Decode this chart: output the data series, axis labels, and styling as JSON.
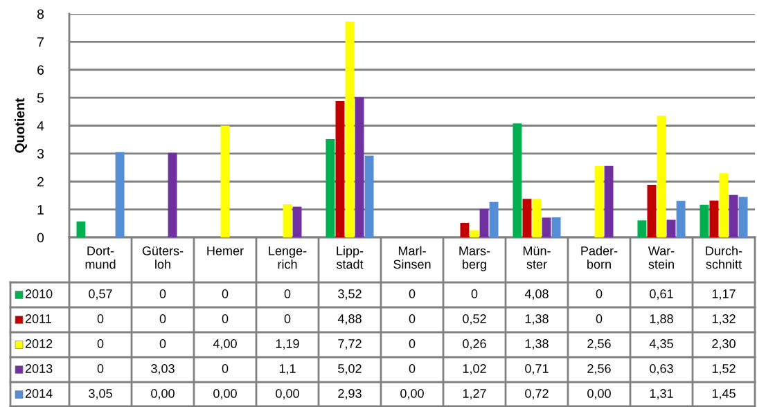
{
  "chart_data": {
    "type": "bar",
    "ylabel": "Quotient",
    "categories": [
      "Dort-\nmund",
      "Güters-\nloh",
      "Hemer",
      "Lenge-\nrich",
      "Lipp-\nstadt",
      "Marl-\nSinsen",
      "Mars-\nberg",
      "Mün-\nster",
      "Pader-\nborn",
      "War-\nstein",
      "Durch-\nschnitt"
    ],
    "series": [
      {
        "name": "2010",
        "color": "#00b050",
        "values": [
          0.57,
          0,
          0,
          0,
          3.52,
          0,
          0,
          4.08,
          0,
          0.61,
          1.17
        ],
        "value_labels": [
          "0,57",
          "0",
          "0",
          "0",
          "3,52",
          "0",
          "0",
          "4,08",
          "0",
          "0,61",
          "1,17"
        ]
      },
      {
        "name": "2011",
        "color": "#c00000",
        "values": [
          0,
          0,
          0,
          0,
          4.88,
          0,
          0.52,
          1.38,
          0,
          1.88,
          1.32
        ],
        "value_labels": [
          "0",
          "0",
          "0",
          "0",
          "4,88",
          "0",
          "0,52",
          "1,38",
          "0",
          "1,88",
          "1,32"
        ]
      },
      {
        "name": "2012",
        "color": "#ffff00",
        "values": [
          0,
          0,
          4.0,
          1.19,
          7.72,
          0,
          0.26,
          1.38,
          2.56,
          4.35,
          2.3
        ],
        "value_labels": [
          "0",
          "0",
          "4,00",
          "1,19",
          "7,72",
          "0",
          "0,26",
          "1,38",
          "2,56",
          "4,35",
          "2,30"
        ]
      },
      {
        "name": "2013",
        "color": "#7030a0",
        "values": [
          0,
          3.03,
          0,
          1.1,
          5.02,
          0,
          1.02,
          0.71,
          2.56,
          0.63,
          1.52
        ],
        "value_labels": [
          "0",
          "3,03",
          "0",
          "1,1",
          "5,02",
          "0",
          "1,02",
          "0,71",
          "2,56",
          "0,63",
          "1,52"
        ]
      },
      {
        "name": "2014",
        "color": "#558ed5",
        "values": [
          3.05,
          0.0,
          0.0,
          0.0,
          2.93,
          0.0,
          1.27,
          0.72,
          0.0,
          1.31,
          1.45
        ],
        "value_labels": [
          "3,05",
          "0,00",
          "0,00",
          "0,00",
          "2,93",
          "0,00",
          "1,27",
          "0,72",
          "0,00",
          "1,31",
          "1,45"
        ]
      }
    ],
    "ylim": [
      0,
      8
    ],
    "yticks": [
      0,
      1,
      2,
      3,
      4,
      5,
      6,
      7,
      8
    ],
    "grid": "y",
    "legend": "bottom"
  }
}
